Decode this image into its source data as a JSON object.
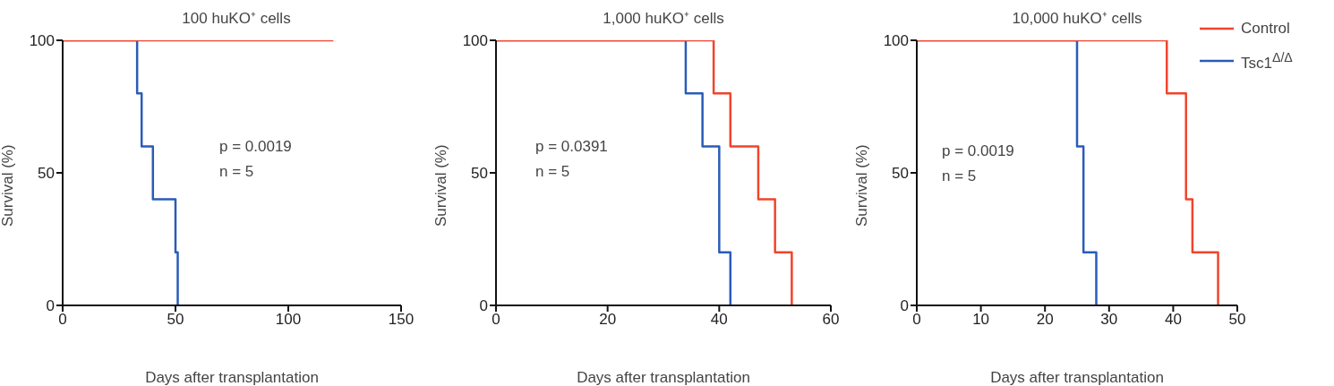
{
  "chart_data": [
    {
      "type": "step",
      "title": "100 huKO⁺ cells",
      "xlabel": "Days after transplantation",
      "ylabel": "Survival (%)",
      "xlim": [
        0,
        150
      ],
      "xticks": [
        0,
        50,
        100,
        150
      ],
      "ylim": [
        0,
        100
      ],
      "yticks": [
        0,
        50,
        100
      ],
      "grid": false,
      "legend": false,
      "annotations": [
        "p = 0.0019",
        "n = 5"
      ],
      "series": [
        {
          "color": "#f0442c",
          "x": [
            0,
            120
          ],
          "values": [
            100,
            100
          ]
        },
        {
          "color": "#2a5cb8",
          "x": [
            0,
            33,
            35,
            40,
            50,
            51
          ],
          "values": [
            100,
            80,
            60,
            40,
            20,
            0
          ]
        }
      ]
    },
    {
      "type": "step",
      "title": "1,000 huKO⁺ cells",
      "xlabel": "Days after transplantation",
      "ylabel": "Survival (%)",
      "xlim": [
        0,
        60
      ],
      "xticks": [
        0,
        20,
        40,
        60
      ],
      "ylim": [
        0,
        100
      ],
      "yticks": [
        0,
        50,
        100
      ],
      "grid": false,
      "legend": false,
      "annotations": [
        "p = 0.0391",
        "n = 5"
      ],
      "series": [
        {
          "color": "#f0442c",
          "x": [
            0,
            39,
            42,
            47,
            50,
            53
          ],
          "values": [
            100,
            80,
            60,
            40,
            20,
            0
          ]
        },
        {
          "color": "#2a5cb8",
          "x": [
            0,
            34,
            37,
            40,
            42
          ],
          "values": [
            100,
            80,
            60,
            20,
            0
          ]
        }
      ]
    },
    {
      "type": "step",
      "title": "10,000 huKO⁺ cells",
      "xlabel": "Days after transplantation",
      "ylabel": "Survival (%)",
      "xlim": [
        0,
        50
      ],
      "xticks": [
        0,
        10,
        20,
        30,
        40,
        50
      ],
      "ylim": [
        0,
        100
      ],
      "yticks": [
        0,
        50,
        100
      ],
      "grid": false,
      "legend": "top right",
      "annotations": [
        "p = 0.0019",
        "n = 5"
      ],
      "series": [
        {
          "name": "Control",
          "color": "#f0442c",
          "x": [
            0,
            39,
            42,
            43,
            47
          ],
          "values": [
            100,
            80,
            40,
            20,
            0
          ]
        },
        {
          "name": "Tsc1$^{Δ/Δ}$",
          "color": "#2a5cb8",
          "x": [
            0,
            25,
            26,
            28
          ],
          "values": [
            100,
            60,
            20,
            0
          ]
        }
      ]
    }
  ]
}
